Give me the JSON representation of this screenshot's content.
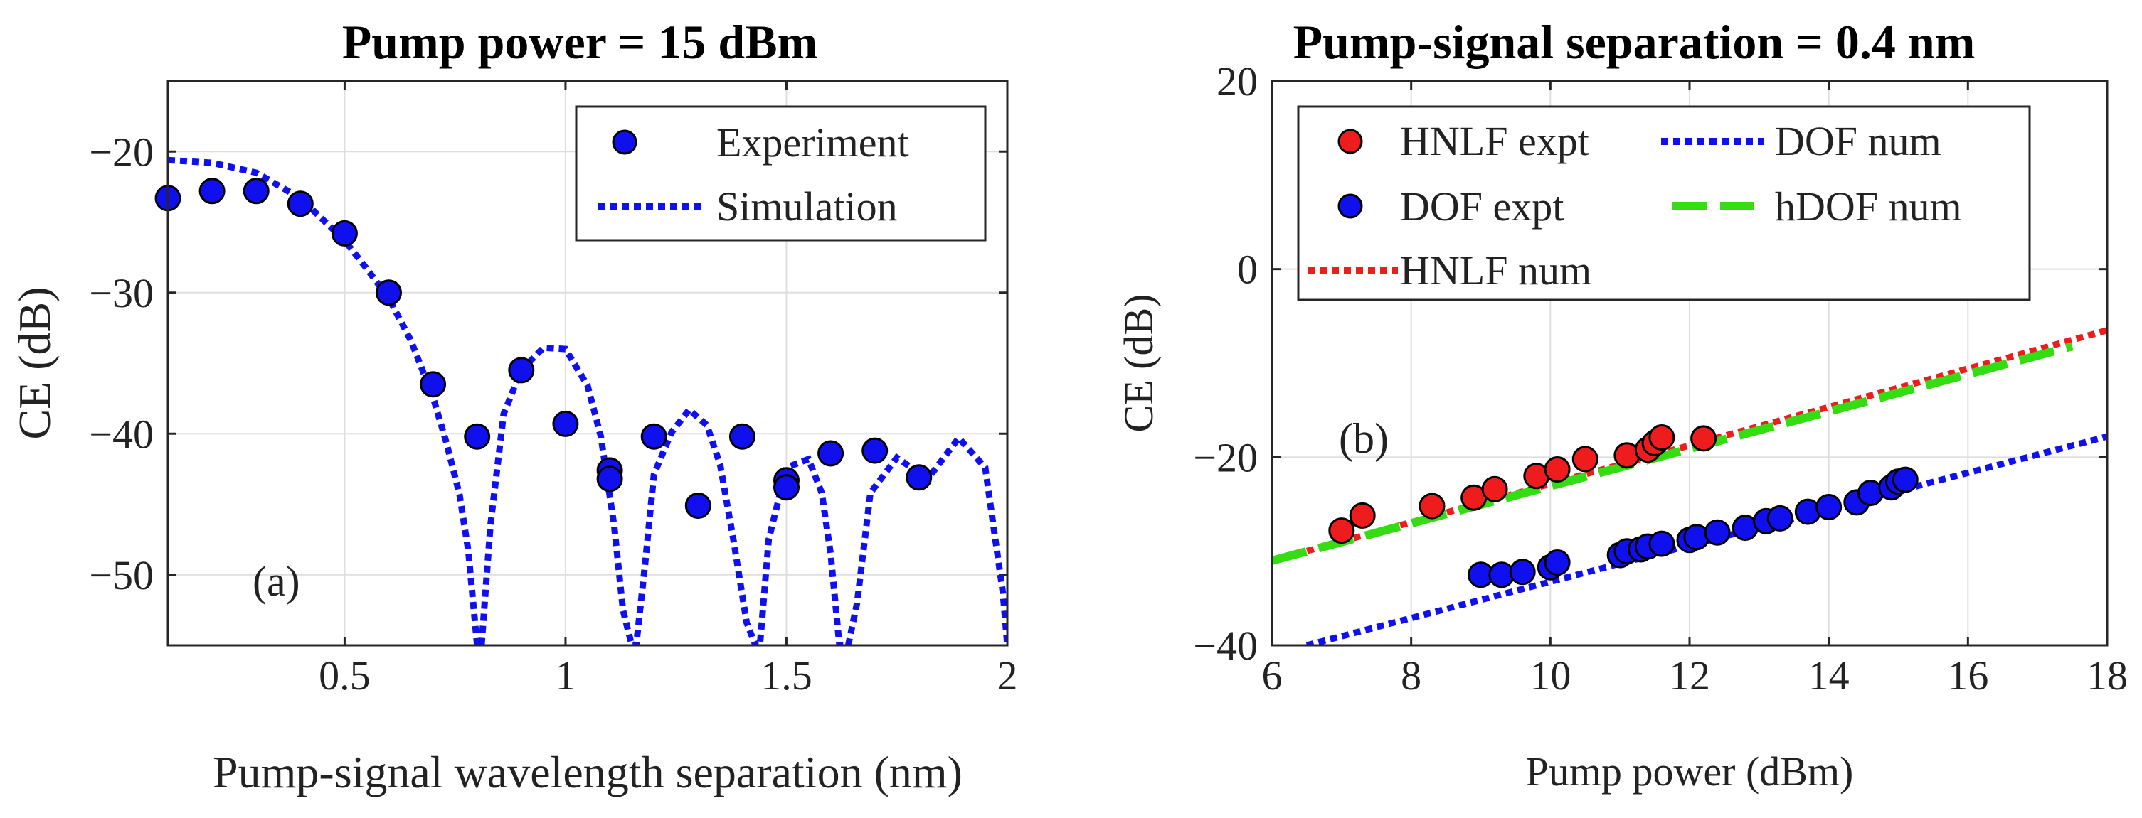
{
  "chart_data": [
    {
      "panel": "a",
      "type": "scatter",
      "title": "Pump power = 15 dBm",
      "xlabel": "Pump-signal wavelength separation (nm)",
      "ylabel": "CE (dB)",
      "xlim": [
        0.1,
        2.0
      ],
      "ylim": [
        -55,
        -15
      ],
      "xticks": [
        0.5,
        1,
        1.5,
        2
      ],
      "xtick_labels": [
        "0.5",
        "1",
        "1.5",
        "2"
      ],
      "yticks": [
        -50,
        -40,
        -30,
        -20
      ],
      "ytick_labels": [
        "−50",
        "−40",
        "−30",
        "−20"
      ],
      "grid": true,
      "legend": "top-right",
      "annotation": "(a)",
      "series": [
        {
          "name": "Experiment",
          "kind": "markers",
          "color": "#1010ee",
          "x": [
            0.1,
            0.2,
            0.3,
            0.4,
            0.5,
            0.6,
            0.7,
            0.8,
            0.9,
            1.0,
            1.1,
            1.1,
            1.2,
            1.3,
            1.4,
            1.5,
            1.5,
            1.6,
            1.7,
            1.8
          ],
          "y": [
            -23.3,
            -22.8,
            -22.8,
            -23.7,
            -25.8,
            -30.0,
            -36.5,
            -40.2,
            -35.5,
            -39.3,
            -42.6,
            -43.2,
            -40.2,
            -45.1,
            -40.2,
            -43.3,
            -43.8,
            -41.4,
            -41.2,
            -43.1
          ]
        },
        {
          "name": "Simulation",
          "kind": "dotted-line",
          "color": "#1010ee",
          "x": [
            0.1,
            0.2,
            0.3,
            0.4,
            0.5,
            0.55,
            0.6,
            0.65,
            0.7,
            0.73,
            0.76,
            0.78,
            0.8,
            0.81,
            0.83,
            0.86,
            0.9,
            0.95,
            1.0,
            1.05,
            1.08,
            1.11,
            1.13,
            1.15,
            1.16,
            1.18,
            1.2,
            1.24,
            1.28,
            1.32,
            1.35,
            1.38,
            1.41,
            1.43,
            1.44,
            1.46,
            1.5,
            1.55,
            1.58,
            1.6,
            1.62,
            1.64,
            1.66,
            1.69,
            1.75,
            1.82,
            1.89,
            1.95,
            1.99,
            2.0
          ],
          "y": [
            -20.6,
            -20.8,
            -21.5,
            -23.3,
            -26.3,
            -28.3,
            -30.4,
            -33.4,
            -37.4,
            -40.6,
            -44.3,
            -48.3,
            -55,
            -55,
            -46.5,
            -38.6,
            -35.5,
            -33.9,
            -34.0,
            -36.6,
            -40.2,
            -46.5,
            -52.5,
            -55,
            -55,
            -49.3,
            -42.9,
            -39.9,
            -38.3,
            -39.4,
            -42.2,
            -47.5,
            -53.4,
            -55,
            -55,
            -47.5,
            -42.4,
            -41.8,
            -44.2,
            -48.5,
            -55,
            -55,
            -52.0,
            -44.2,
            -41.7,
            -43.2,
            -40.3,
            -42.4,
            -51.3,
            -55
          ]
        }
      ]
    },
    {
      "panel": "b",
      "type": "scatter",
      "title": "Pump-signal separation = 0.4 nm",
      "xlabel": "Pump power (dBm)",
      "ylabel": "CE (dB)",
      "xlim": [
        6,
        18
      ],
      "ylim": [
        -40,
        20
      ],
      "xticks": [
        6,
        8,
        10,
        12,
        14,
        16,
        18
      ],
      "xtick_labels": [
        "6",
        "8",
        "10",
        "12",
        "14",
        "16",
        "18"
      ],
      "yticks": [
        -40,
        -20,
        0,
        20
      ],
      "ytick_labels": [
        "−40",
        "−20",
        "0",
        "20"
      ],
      "grid": true,
      "legend": "top-left",
      "annotation": "(b)",
      "series": [
        {
          "name": "HNLF expt",
          "kind": "markers",
          "color": "#ee1c1c",
          "x": [
            7.0,
            7.3,
            8.3,
            8.9,
            9.2,
            9.8,
            10.1,
            10.5,
            11.1,
            11.4,
            11.5,
            11.6,
            12.2
          ],
          "y": [
            -27.8,
            -26.2,
            -25.2,
            -24.3,
            -23.4,
            -22.0,
            -21.3,
            -20.2,
            -19.8,
            -19.2,
            -18.5,
            -17.9,
            -18.0
          ]
        },
        {
          "name": "DOF expt",
          "kind": "markers",
          "color": "#1010ee",
          "x": [
            9.0,
            9.3,
            9.6,
            10.0,
            10.1,
            11.0,
            11.1,
            11.3,
            11.4,
            11.6,
            12.0,
            12.1,
            12.4,
            12.8,
            13.1,
            13.3,
            13.7,
            14.0,
            14.4,
            14.6,
            14.9,
            15.0,
            15.1
          ],
          "y": [
            -32.5,
            -32.5,
            -32.2,
            -31.7,
            -31.2,
            -30.4,
            -30.0,
            -29.8,
            -29.5,
            -29.2,
            -28.8,
            -28.5,
            -28.0,
            -27.5,
            -26.8,
            -26.5,
            -25.8,
            -25.3,
            -24.8,
            -23.8,
            -23.2,
            -22.6,
            -22.4
          ]
        },
        {
          "name": "HNLF num",
          "kind": "dotted-line",
          "color": "#ee1c1c",
          "x": [
            6,
            18
          ],
          "y": [
            -31.0,
            -6.5
          ]
        },
        {
          "name": "DOF num",
          "kind": "dotted-line",
          "color": "#1010ee",
          "x": [
            6.5,
            18
          ],
          "y": [
            -40,
            -17.8
          ]
        },
        {
          "name": "hDOF num",
          "kind": "dashed-line",
          "color": "#33dd11",
          "x": [
            6,
            17.5
          ],
          "y": [
            -31.0,
            -8.2
          ]
        }
      ]
    }
  ]
}
